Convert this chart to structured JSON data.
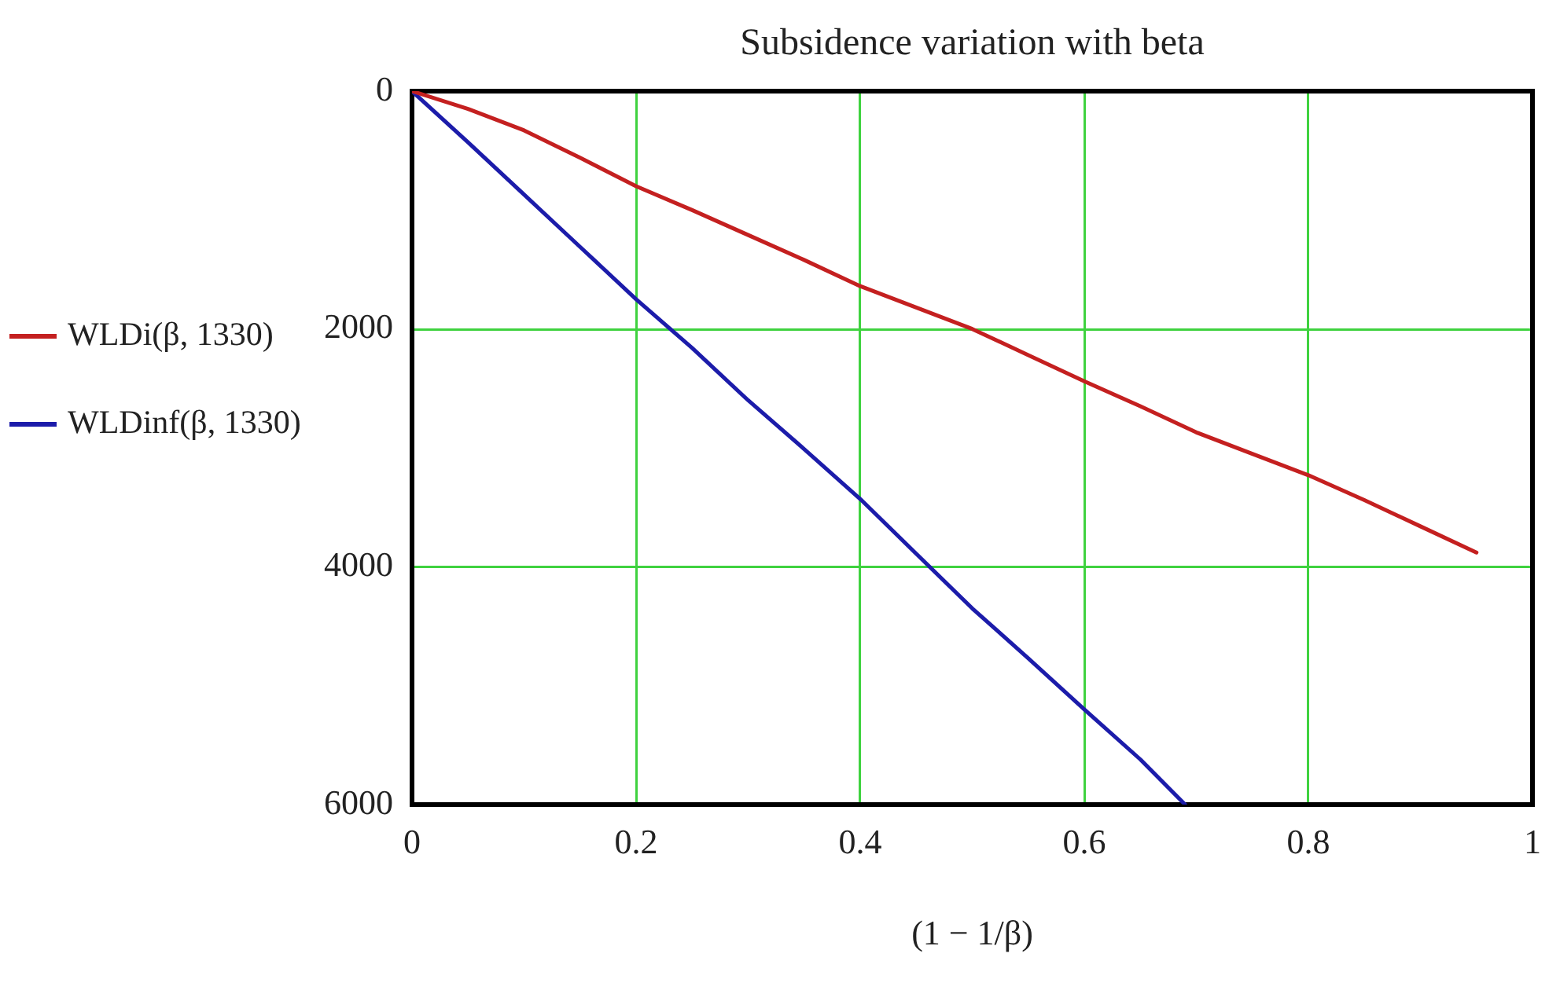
{
  "chart_data": {
    "type": "line",
    "title": "Subsidence variation with beta",
    "xlabel": "(1 − 1/β)",
    "xlim": [
      0,
      1
    ],
    "xticks": [
      0,
      0.2,
      0.4,
      0.6,
      0.8,
      1
    ],
    "ylim": [
      6000,
      0
    ],
    "yticks": [
      0,
      2000,
      4000,
      6000
    ],
    "grid": true,
    "legend": "left",
    "series": [
      {
        "name": "WLDi(β, 1330)",
        "color": "#c42020",
        "x": [
          0,
          0.05,
          0.1,
          0.15,
          0.2,
          0.25,
          0.3,
          0.35,
          0.4,
          0.45,
          0.5,
          0.55,
          0.6,
          0.65,
          0.7,
          0.75,
          0.8,
          0.85,
          0.9,
          0.95
        ],
        "values": [
          0,
          150,
          330,
          560,
          800,
          1000,
          1210,
          1420,
          1640,
          1820,
          2000,
          2220,
          2440,
          2650,
          2870,
          3050,
          3230,
          3440,
          3660,
          3880
        ]
      },
      {
        "name": "WLDinf(β, 1330)",
        "color": "#1c1caa",
        "x": [
          0,
          0.05,
          0.1,
          0.15,
          0.2,
          0.25,
          0.3,
          0.35,
          0.4,
          0.45,
          0.5,
          0.55,
          0.6,
          0.65,
          0.69
        ],
        "values": [
          0,
          430,
          870,
          1310,
          1750,
          2160,
          2600,
          3010,
          3430,
          3890,
          4350,
          4770,
          5200,
          5620,
          6000
        ]
      }
    ]
  }
}
